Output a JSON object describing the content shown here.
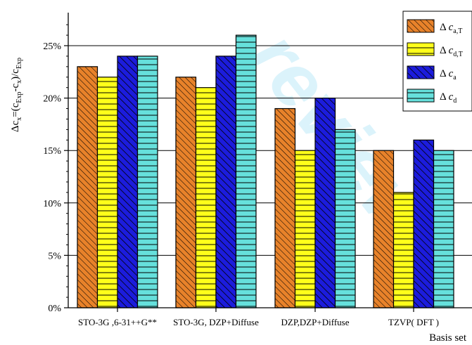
{
  "watermark": "review",
  "chart_data": {
    "type": "bar",
    "categories": [
      "STO-3G ,6-31++G**",
      "STO-3G, DZP+Diffuse",
      "DZP,DZP+Diffuse",
      "TZVP( DFT )"
    ],
    "series": [
      {
        "name": "Δ c a,T",
        "label_main": "Δ c",
        "label_sub": "a,T",
        "values": [
          23,
          22,
          19,
          15
        ],
        "color": "#e8822a",
        "pattern": "diag-thin"
      },
      {
        "name": "Δ c d,T",
        "label_main": "Δ c",
        "label_sub": "d,T",
        "values": [
          22,
          21,
          15,
          11
        ],
        "color": "#ffff1a",
        "pattern": "horizontal"
      },
      {
        "name": "Δ c a",
        "label_main": "Δ c",
        "label_sub": "a",
        "values": [
          24,
          24,
          20,
          16
        ],
        "color": "#1c1cdc",
        "pattern": "diag-thick"
      },
      {
        "name": "Δ c d",
        "label_main": "Δ c",
        "label_sub": "d",
        "values": [
          24,
          26,
          17,
          15
        ],
        "color": "#66e0dc",
        "pattern": "horizontal"
      }
    ],
    "xlabel": "Basis set",
    "ylabel": "Δc_x=(c_Exp-c_x)/c_Exp",
    "yticks": [
      "0%",
      "5%",
      "10%",
      "15%",
      "20%",
      "25%"
    ],
    "ylim": [
      0,
      28
    ],
    "unit": "%",
    "grid": "horizontal-major",
    "legend": "top-right"
  }
}
